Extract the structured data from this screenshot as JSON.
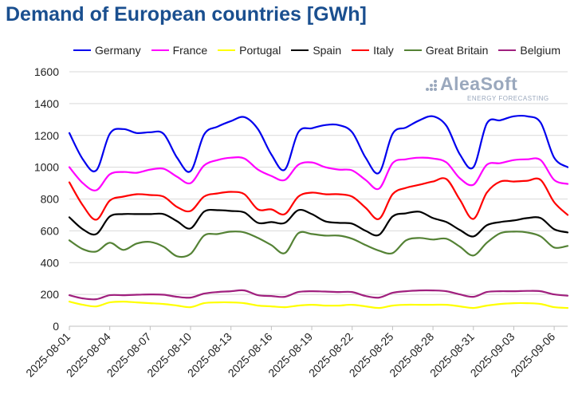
{
  "chart_data": {
    "type": "line",
    "title": "Demand of European countries [GWh]",
    "xlabel": "",
    "ylabel": "",
    "ylim": [
      0,
      1600
    ],
    "yticks": [
      0,
      200,
      400,
      600,
      800,
      1000,
      1200,
      1400,
      1600
    ],
    "grid": true,
    "legend_position": "top",
    "x_start": "2025-08-01",
    "x_end": "2025-09-07",
    "x_tick_labels": [
      "2025-08-01",
      "2025-08-04",
      "2025-08-07",
      "2025-08-10",
      "2025-08-13",
      "2025-08-16",
      "2025-08-19",
      "2025-08-22",
      "2025-08-25",
      "2025-08-28",
      "2025-08-31",
      "2025-09-03",
      "2025-09-06"
    ],
    "categories": [
      "2025-08-01",
      "2025-08-02",
      "2025-08-03",
      "2025-08-04",
      "2025-08-05",
      "2025-08-06",
      "2025-08-07",
      "2025-08-08",
      "2025-08-09",
      "2025-08-10",
      "2025-08-11",
      "2025-08-12",
      "2025-08-13",
      "2025-08-14",
      "2025-08-15",
      "2025-08-16",
      "2025-08-17",
      "2025-08-18",
      "2025-08-19",
      "2025-08-20",
      "2025-08-21",
      "2025-08-22",
      "2025-08-23",
      "2025-08-24",
      "2025-08-25",
      "2025-08-26",
      "2025-08-27",
      "2025-08-28",
      "2025-08-29",
      "2025-08-30",
      "2025-08-31",
      "2025-09-01",
      "2025-09-02",
      "2025-09-03",
      "2025-09-04",
      "2025-09-05",
      "2025-09-06",
      "2025-09-07"
    ],
    "series": [
      {
        "name": "Germany",
        "color": "#0000ee",
        "values": [
          1215,
          1050,
          980,
          1210,
          1240,
          1215,
          1220,
          1210,
          1060,
          975,
          1205,
          1255,
          1290,
          1315,
          1240,
          1080,
          985,
          1220,
          1245,
          1265,
          1265,
          1220,
          1060,
          965,
          1210,
          1250,
          1295,
          1320,
          1260,
          1080,
          1000,
          1275,
          1295,
          1320,
          1320,
          1280,
          1060,
          1000
        ]
      },
      {
        "name": "France",
        "color": "#ff00ff",
        "values": [
          1000,
          900,
          855,
          955,
          970,
          965,
          985,
          990,
          940,
          900,
          1010,
          1045,
          1060,
          1055,
          985,
          945,
          920,
          1015,
          1030,
          1000,
          985,
          980,
          920,
          865,
          1025,
          1050,
          1060,
          1055,
          1030,
          930,
          890,
          1015,
          1025,
          1045,
          1050,
          1045,
          920,
          895
        ]
      },
      {
        "name": "Portugal",
        "color": "#ffff00",
        "values": [
          155,
          135,
          125,
          150,
          155,
          150,
          145,
          140,
          130,
          120,
          145,
          150,
          150,
          145,
          130,
          125,
          120,
          130,
          135,
          130,
          130,
          135,
          125,
          115,
          130,
          135,
          135,
          135,
          135,
          125,
          115,
          130,
          140,
          145,
          145,
          140,
          120,
          115
        ]
      },
      {
        "name": "Spain",
        "color": "#000000",
        "values": [
          685,
          610,
          580,
          690,
          705,
          705,
          705,
          705,
          660,
          615,
          720,
          730,
          725,
          715,
          650,
          655,
          650,
          730,
          705,
          660,
          650,
          645,
          600,
          575,
          690,
          710,
          720,
          680,
          655,
          605,
          565,
          635,
          655,
          665,
          680,
          680,
          610,
          590
        ]
      },
      {
        "name": "Italy",
        "color": "#ff0000",
        "values": [
          905,
          760,
          670,
          790,
          815,
          830,
          825,
          815,
          750,
          725,
          815,
          835,
          845,
          830,
          735,
          735,
          705,
          815,
          840,
          830,
          830,
          815,
          745,
          675,
          830,
          870,
          890,
          910,
          925,
          795,
          675,
          840,
          910,
          910,
          915,
          920,
          780,
          700
        ]
      },
      {
        "name": "Great Britain",
        "color": "#548235",
        "values": [
          540,
          485,
          470,
          525,
          480,
          520,
          530,
          500,
          440,
          455,
          570,
          580,
          595,
          590,
          555,
          510,
          460,
          585,
          580,
          570,
          570,
          550,
          510,
          475,
          460,
          540,
          555,
          545,
          550,
          500,
          445,
          525,
          585,
          595,
          590,
          565,
          495,
          505
        ]
      },
      {
        "name": "Belgium",
        "color": "#a0207e",
        "values": [
          195,
          175,
          170,
          195,
          195,
          198,
          200,
          198,
          185,
          180,
          205,
          215,
          220,
          225,
          195,
          190,
          185,
          215,
          220,
          218,
          215,
          215,
          190,
          180,
          210,
          220,
          225,
          225,
          220,
          200,
          185,
          215,
          220,
          220,
          222,
          220,
          200,
          192
        ]
      }
    ]
  },
  "watermark": {
    "name": "AleaSoft",
    "subtitle": "ENERGY FORECASTING"
  }
}
